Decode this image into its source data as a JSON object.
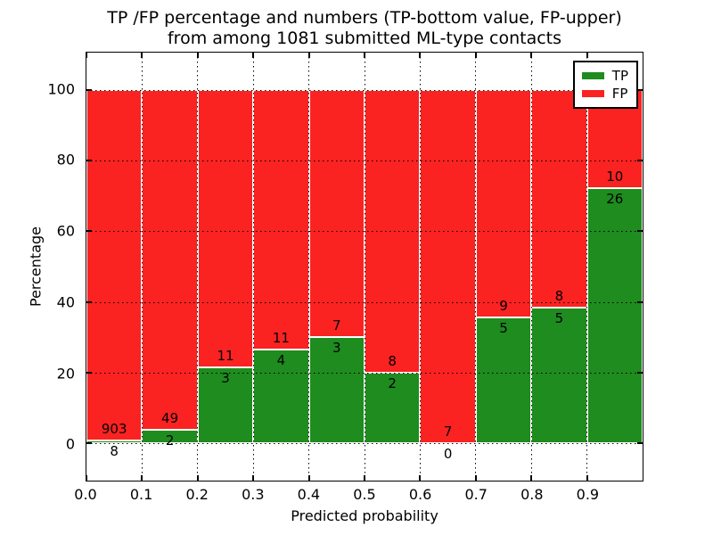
{
  "figure": {
    "title_line1": "TP /FP percentage and numbers (TP-bottom value, FP-upper)",
    "title_line2": "from among 1081 submitted ML-type contacts",
    "xlabel": "Predicted probability",
    "ylabel": "Percentage"
  },
  "legend": {
    "position": "upper right",
    "entries": [
      {
        "label": "TP",
        "color": "#1e8c1e"
      },
      {
        "label": "FP",
        "color": "#fb2222"
      }
    ]
  },
  "chart_data": {
    "type": "bar",
    "stacked": true,
    "title": "TP /FP percentage and numbers (TP-bottom value, FP-upper) from among 1081 submitted ML-type contacts",
    "xlabel": "Predicted probability",
    "ylabel": "Percentage",
    "total_submitted": 1081,
    "grid": true,
    "xlim": [
      0.0,
      1.0
    ],
    "ylim": [
      -10.5,
      110.5
    ],
    "xticks": [
      0.0,
      0.1,
      0.2,
      0.3,
      0.4,
      0.5,
      0.6,
      0.7,
      0.8,
      0.9
    ],
    "xtick_labels": [
      "0.0",
      "0.1",
      "0.2",
      "0.3",
      "0.4",
      "0.5",
      "0.6",
      "0.7",
      "0.8",
      "0.9"
    ],
    "yticks": [
      0,
      20,
      40,
      60,
      80,
      100
    ],
    "colors": {
      "TP": "#1e8c1e",
      "FP": "#fb2222"
    },
    "bins": [
      {
        "x_start": 0.0,
        "x_end": 0.1,
        "tp_count": 8,
        "fp_count": 903,
        "tp_percent": 0.88,
        "fp_percent": 99.12
      },
      {
        "x_start": 0.1,
        "x_end": 0.2,
        "tp_count": 2,
        "fp_count": 49,
        "tp_percent": 3.92,
        "fp_percent": 96.08
      },
      {
        "x_start": 0.2,
        "x_end": 0.3,
        "tp_count": 3,
        "fp_count": 11,
        "tp_percent": 21.43,
        "fp_percent": 78.57
      },
      {
        "x_start": 0.3,
        "x_end": 0.4,
        "tp_count": 4,
        "fp_count": 11,
        "tp_percent": 26.67,
        "fp_percent": 73.33
      },
      {
        "x_start": 0.4,
        "x_end": 0.5,
        "tp_count": 3,
        "fp_count": 7,
        "tp_percent": 30.0,
        "fp_percent": 70.0
      },
      {
        "x_start": 0.5,
        "x_end": 0.6,
        "tp_count": 2,
        "fp_count": 8,
        "tp_percent": 20.0,
        "fp_percent": 80.0
      },
      {
        "x_start": 0.6,
        "x_end": 0.7,
        "tp_count": 0,
        "fp_count": 7,
        "tp_percent": 0.0,
        "fp_percent": 100.0
      },
      {
        "x_start": 0.7,
        "x_end": 0.8,
        "tp_count": 5,
        "fp_count": 9,
        "tp_percent": 35.71,
        "fp_percent": 64.29
      },
      {
        "x_start": 0.8,
        "x_end": 0.9,
        "tp_count": 5,
        "fp_count": 8,
        "tp_percent": 38.46,
        "fp_percent": 61.54
      },
      {
        "x_start": 0.9,
        "x_end": 1.0,
        "tp_count": 26,
        "fp_count": 10,
        "tp_percent": 72.22,
        "fp_percent": 27.78
      }
    ]
  }
}
